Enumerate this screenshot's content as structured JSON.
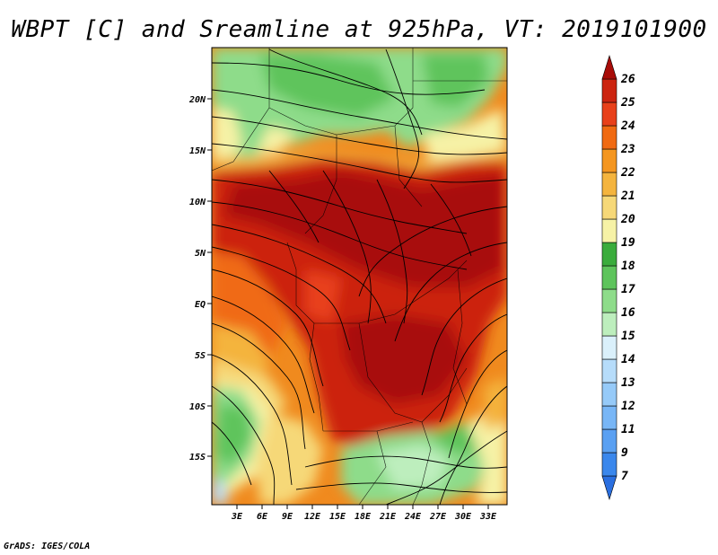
{
  "title": "WBPT [C] and Sreamline at 925hPa, VT: 2019101900",
  "footer": "GrADS: IGES/COLA",
  "map": {
    "lat_labels": [
      "20N",
      "15N",
      "10N",
      "5N",
      "EQ",
      "5S",
      "10S",
      "15S"
    ],
    "lon_labels": [
      "3E",
      "6E",
      "9E",
      "12E",
      "15E",
      "18E",
      "21E",
      "24E",
      "27E",
      "30E",
      "33E"
    ]
  },
  "colorbar": {
    "levels": [
      "7",
      "9",
      "11",
      "12",
      "13",
      "14",
      "15",
      "16",
      "17",
      "18",
      "19",
      "20",
      "21",
      "22",
      "23",
      "24",
      "25",
      "26"
    ],
    "colors": [
      "#2a6fe0",
      "#3a87ec",
      "#5aa0f2",
      "#78b6f6",
      "#96caf8",
      "#b6dcfa",
      "#daf0fb",
      "#bdeebd",
      "#8edc8a",
      "#5ec45c",
      "#3aac3c",
      "#f6f2a6",
      "#f6d878",
      "#f4b43e",
      "#f49620",
      "#f06a12",
      "#e8401a",
      "#cc2410",
      "#a80c08"
    ]
  }
}
